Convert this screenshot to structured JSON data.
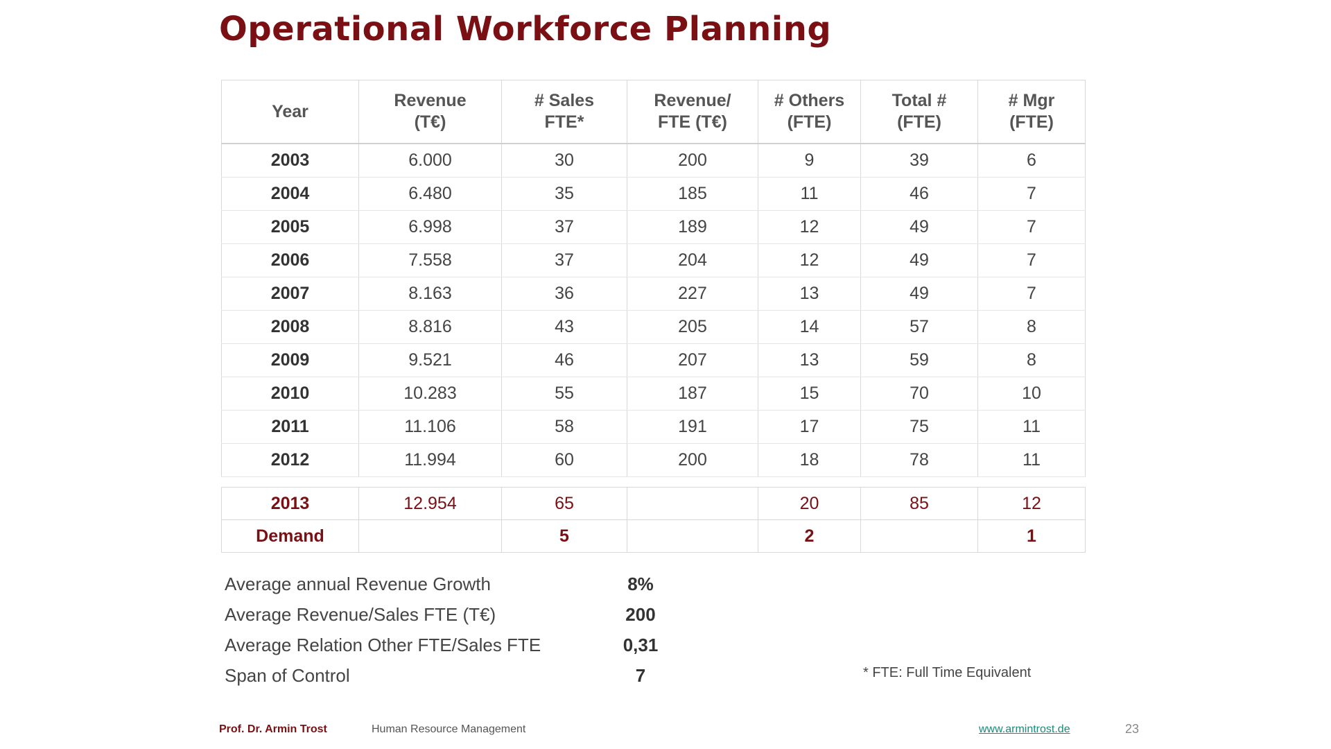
{
  "title": "Operational Workforce Planning",
  "table": {
    "headers": [
      [
        "Year",
        ""
      ],
      [
        "Revenue",
        "(T€)"
      ],
      [
        "# Sales",
        "FTE*"
      ],
      [
        "Revenue/",
        "FTE (T€)"
      ],
      [
        "# Others",
        "(FTE)"
      ],
      [
        "Total #",
        "(FTE)"
      ],
      [
        "# Mgr",
        "(FTE)"
      ]
    ],
    "rows": [
      [
        "2003",
        "6.000",
        "30",
        "200",
        "9",
        "39",
        "6"
      ],
      [
        "2004",
        "6.480",
        "35",
        "185",
        "11",
        "46",
        "7"
      ],
      [
        "2005",
        "6.998",
        "37",
        "189",
        "12",
        "49",
        "7"
      ],
      [
        "2006",
        "7.558",
        "37",
        "204",
        "12",
        "49",
        "7"
      ],
      [
        "2007",
        "8.163",
        "36",
        "227",
        "13",
        "49",
        "7"
      ],
      [
        "2008",
        "8.816",
        "43",
        "205",
        "14",
        "57",
        "8"
      ],
      [
        "2009",
        "9.521",
        "46",
        "207",
        "13",
        "59",
        "8"
      ],
      [
        "2010",
        "10.283",
        "55",
        "187",
        "15",
        "70",
        "10"
      ],
      [
        "2011",
        "11.106",
        "58",
        "191",
        "17",
        "75",
        "11"
      ],
      [
        "2012",
        "11.994",
        "60",
        "200",
        "18",
        "78",
        "11"
      ]
    ],
    "forecast": [
      "2013",
      "12.954",
      "65",
      "",
      "20",
      "85",
      "12"
    ],
    "demand": [
      "Demand",
      "",
      "5",
      "",
      "2",
      "",
      "1"
    ]
  },
  "summary": [
    {
      "label": "Average annual Revenue Growth",
      "value": "8%"
    },
    {
      "label": "Average Revenue/Sales FTE (T€)",
      "value": "200"
    },
    {
      "label": "Average Relation Other FTE/Sales FTE",
      "value": "0,31"
    },
    {
      "label": "Span of Control",
      "value": "7"
    }
  ],
  "footnote": "* FTE: Full Time Equivalent",
  "footer": {
    "author": "Prof. Dr. Armin Trost",
    "course": "Human Resource Management",
    "link": "www.armintrost.de",
    "page": "23"
  },
  "colors": {
    "accent": "#7a0f14",
    "link": "#1a8a7a"
  }
}
